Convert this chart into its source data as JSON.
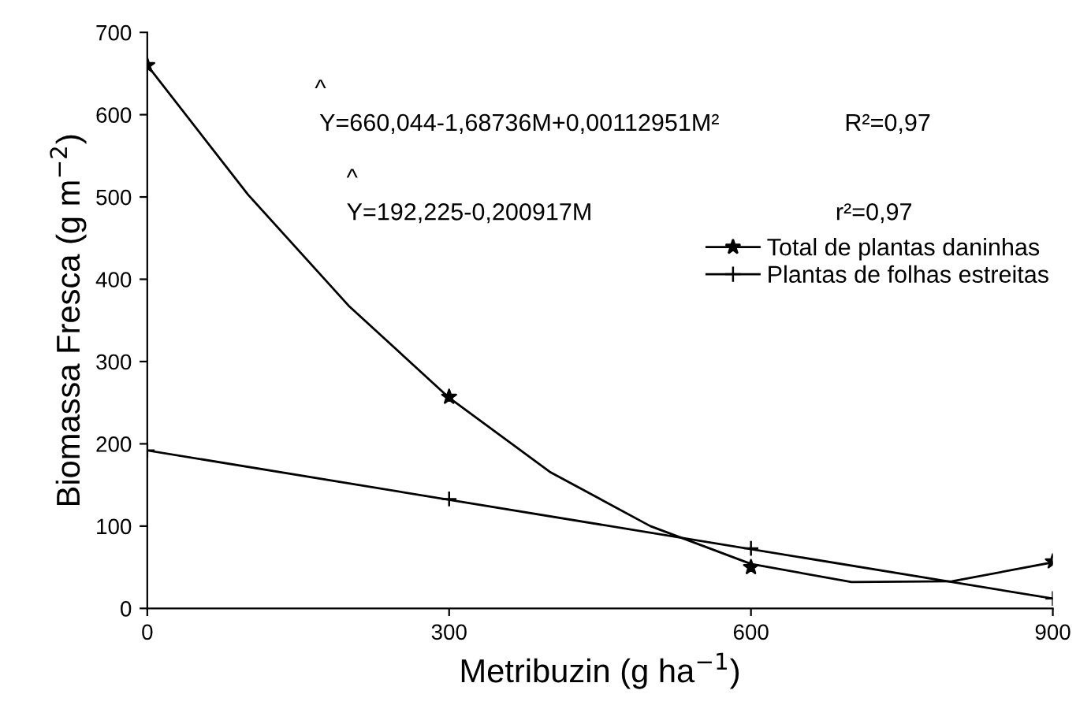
{
  "chart_data": {
    "type": "line",
    "xlabel": "Metribuzin (g ha$^{−1}$)",
    "ylabel": "Biomassa Fresca (g m$^{−2}$)",
    "xlim": [
      0,
      900
    ],
    "ylim": [
      0,
      700
    ],
    "xticks": [
      0,
      300,
      600,
      900
    ],
    "yticks": [
      0,
      100,
      200,
      300,
      400,
      500,
      600,
      700
    ],
    "grid": false,
    "legend": "right",
    "series": [
      {
        "name": "Total de plantas daninhas",
        "color": "#000000",
        "marker": "none",
        "x": [
          0,
          100,
          200,
          300,
          400,
          500,
          600,
          700,
          800,
          900
        ],
        "values": [
          660,
          503,
          368,
          256,
          166,
          100,
          54,
          32,
          33,
          56
        ]
      },
      {
        "type": "scatter",
        "color": "#000000",
        "marker": "star",
        "x": [
          0,
          300,
          600,
          900
        ],
        "values": [
          660,
          257,
          50,
          57
        ]
      },
      {
        "name": "Plantas de folhas estreitas",
        "color": "#000000",
        "marker": "none",
        "x": [
          0,
          900
        ],
        "values": [
          192,
          12
        ]
      },
      {
        "type": "scatter",
        "color": "#000000",
        "marker": "cross",
        "x": [
          0,
          300,
          600,
          900
        ],
        "values": [
          192,
          133,
          73,
          12
        ]
      }
    ],
    "annotations": [
      "^",
      "Y=660,044-1,68736M+0,00112951M²",
      "R²=0,97",
      "^",
      "Y=192,225-0,200917M",
      "r²=0,97"
    ]
  }
}
